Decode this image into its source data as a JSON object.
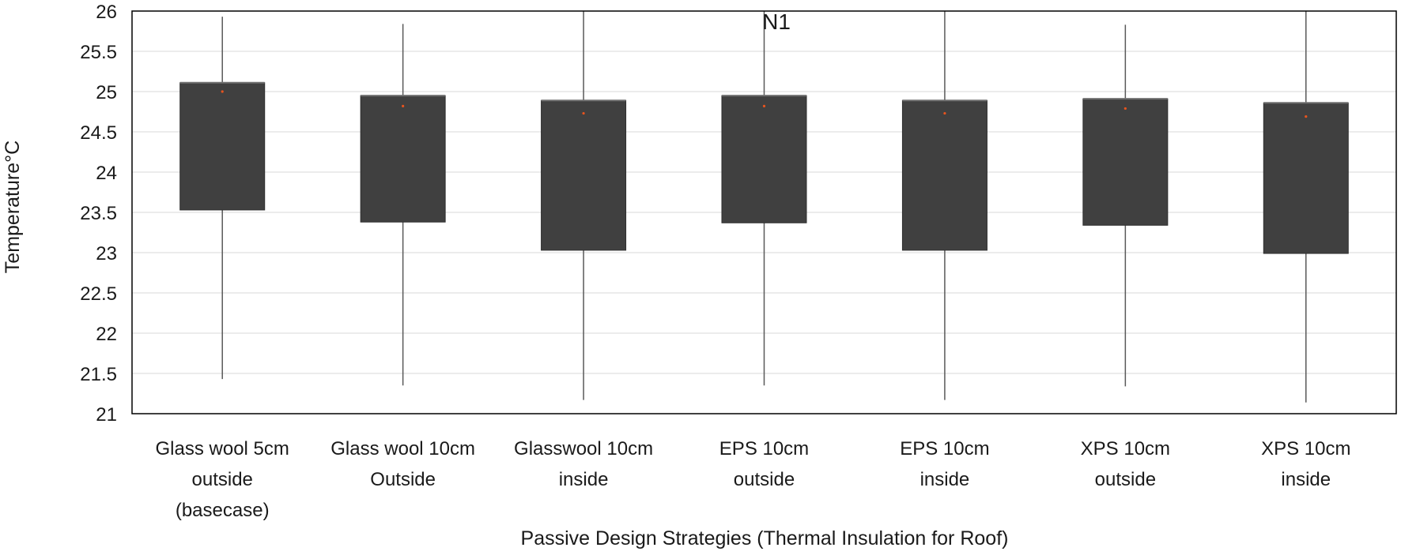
{
  "chart_data": {
    "type": "box",
    "title": "N1",
    "xlabel": "Passive Design Strategies (Thermal Insulation for Roof)",
    "ylabel": "Temperature°C",
    "ylim": [
      21,
      26
    ],
    "yticks": [
      "21",
      "21.5",
      "22",
      "22.5",
      "23",
      "23.5",
      "24",
      "24.5",
      "25",
      "25.5",
      "26"
    ],
    "categories": [
      [
        "Glass wool 5cm",
        "outside",
        "(basecase)"
      ],
      [
        "Glass wool 10cm",
        "Outside"
      ],
      [
        "Glasswool 10cm",
        "inside"
      ],
      [
        "EPS 10cm",
        "outside"
      ],
      [
        "EPS 10cm",
        "inside"
      ],
      [
        "XPS 10cm",
        "outside"
      ],
      [
        "XPS 10cm",
        "inside"
      ]
    ],
    "boxes": [
      {
        "min": 21.43,
        "q1": 23.53,
        "median": 25.11,
        "q3": 25.11,
        "max": 25.93,
        "mean": 25.0
      },
      {
        "min": 21.35,
        "q1": 23.38,
        "median": 24.95,
        "q3": 24.95,
        "max": 25.84,
        "mean": 24.82
      },
      {
        "min": 21.17,
        "q1": 23.03,
        "median": 24.89,
        "q3": 24.89,
        "max": 26.0,
        "mean": 24.73
      },
      {
        "min": 21.35,
        "q1": 23.37,
        "median": 24.95,
        "q3": 24.95,
        "max": 26.0,
        "mean": 24.82
      },
      {
        "min": 21.17,
        "q1": 23.03,
        "median": 24.89,
        "q3": 24.89,
        "max": 26.0,
        "mean": 24.73
      },
      {
        "min": 21.34,
        "q1": 23.34,
        "median": 24.91,
        "q3": 24.91,
        "max": 25.83,
        "mean": 24.79
      },
      {
        "min": 21.14,
        "q1": 22.99,
        "median": 24.86,
        "q3": 24.86,
        "max": 26.0,
        "mean": 24.69
      }
    ],
    "colors": {
      "box": "#404040",
      "whisker": "#595959",
      "mean_marker": "#e8541e",
      "grid": "#d9d9d9",
      "axis": "#000000"
    }
  }
}
